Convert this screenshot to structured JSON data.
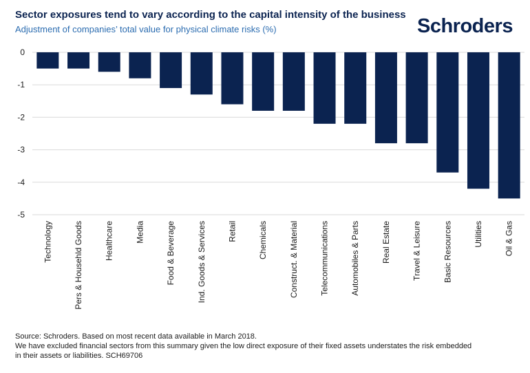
{
  "title": "Sector exposures tend to vary according to the capital intensity of the business",
  "subtitle": "Adjustment of companies’ total value for physical climate risks (%)",
  "logo": "Schroders",
  "footnote": {
    "line1": "Source: Schroders. Based on most recent data available in March 2018.",
    "line2": "We have excluded financial sectors from this summary given the low direct exposure of their fixed assets understates the risk embedded",
    "line3": "in their assets or liabilities. SCH69706"
  },
  "colors": {
    "bar": "#0b2350",
    "grid": "#d9d9d9"
  },
  "chart_data": {
    "type": "bar",
    "title": "Sector exposures tend to vary according to the capital intensity of the business",
    "ylabel": "Adjustment of companies’ total value for physical climate risks (%)",
    "xlabel": "",
    "categories": [
      "Technology",
      "Pers & Househld Goods",
      "Healthcare",
      "Media",
      "Food & Beverage",
      "Ind. Goods & Services",
      "Retail",
      "Chemicals",
      "Construct. & Material",
      "Telecommunications",
      "Automobiles & Parts",
      "Real Estate",
      "Travel & Leisure",
      "Basic Resources",
      "Utilities",
      "Oil & Gas"
    ],
    "values": [
      -0.5,
      -0.5,
      -0.6,
      -0.8,
      -1.1,
      -1.3,
      -1.6,
      -1.8,
      -1.8,
      -2.2,
      -2.2,
      -2.8,
      -2.8,
      -3.7,
      -4.2,
      -4.5
    ],
    "ylim": [
      -5,
      0
    ],
    "yticks": [
      0,
      -1,
      -2,
      -3,
      -4,
      -5
    ],
    "grid": true
  }
}
